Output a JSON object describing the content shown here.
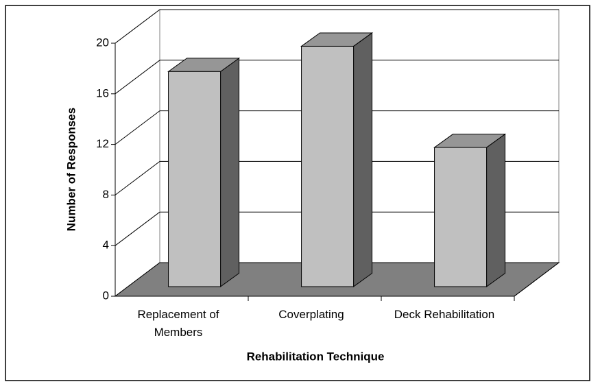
{
  "chart_data": {
    "type": "bar3d",
    "categories": [
      "Replacement of Members",
      "Coverplating",
      "Deck Rehabilitation"
    ],
    "values": [
      17,
      19,
      11
    ],
    "ylim": [
      0,
      20
    ],
    "yticks": [
      0,
      4,
      8,
      12,
      16,
      20
    ],
    "ylabel": "Number of Responses",
    "xlabel": "Rehabilitation Technique",
    "grid": true,
    "color": "#c0c0c0",
    "floor_color": "#808080"
  }
}
